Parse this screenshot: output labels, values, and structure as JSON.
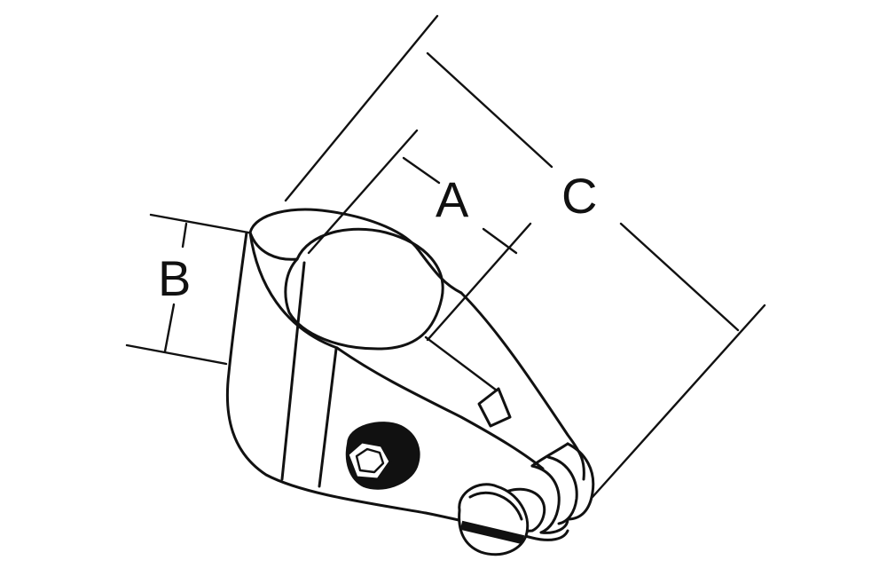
{
  "figure": {
    "labels": {
      "A": "A",
      "B": "B",
      "C": "C"
    }
  }
}
